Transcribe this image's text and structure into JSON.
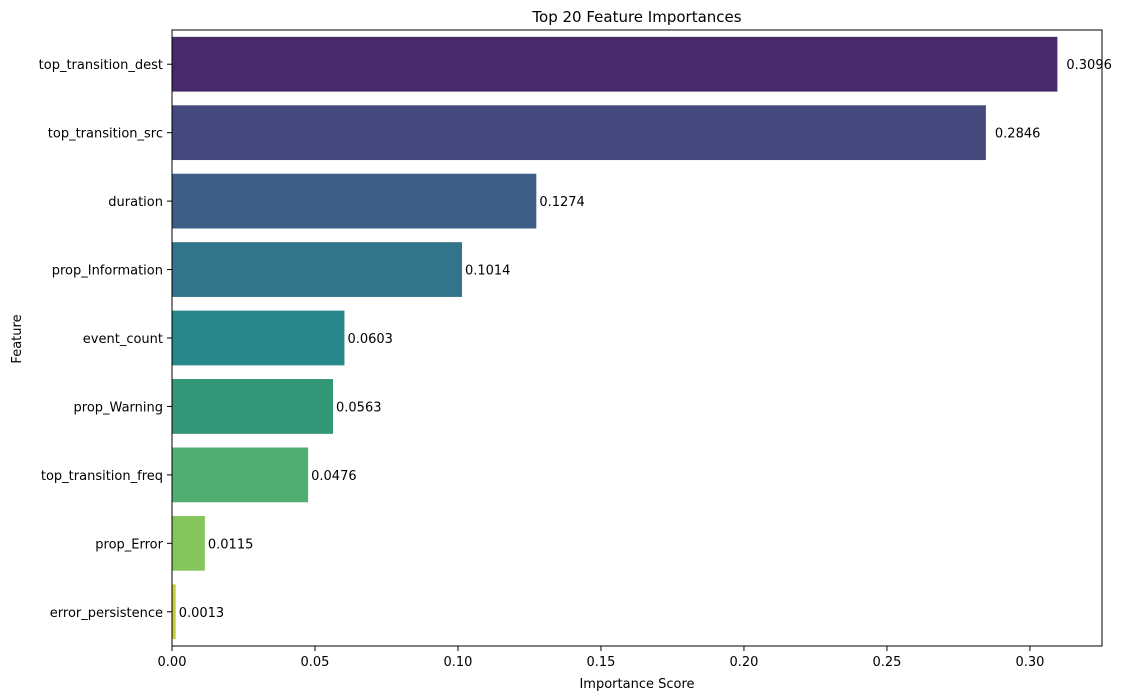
{
  "chart_data": {
    "type": "bar",
    "orientation": "horizontal",
    "title": "Top 20 Feature Importances",
    "xlabel": "Importance Score",
    "ylabel": "Feature",
    "xlim": [
      0,
      0.3252
    ],
    "xticks": [
      0.0,
      0.05,
      0.1,
      0.15,
      0.2,
      0.25,
      0.3
    ],
    "xtick_labels": [
      "0.00",
      "0.05",
      "0.10",
      "0.15",
      "0.20",
      "0.25",
      "0.30"
    ],
    "grid": false,
    "categories": [
      "top_transition_dest",
      "top_transition_src",
      "duration",
      "prop_Information",
      "event_count",
      "prop_Warning",
      "top_transition_freq",
      "prop_Error",
      "error_persistence"
    ],
    "values": [
      0.3096,
      0.2846,
      0.1274,
      0.1014,
      0.0603,
      0.0563,
      0.0476,
      0.0115,
      0.0013
    ],
    "data_labels": [
      "0.3096",
      "0.2846",
      "0.1274",
      "0.1014",
      "0.0603",
      "0.0563",
      "0.0476",
      "0.0115",
      "0.0013"
    ],
    "colors": [
      "#482a6a",
      "#46497e",
      "#3d5f87",
      "#32748a",
      "#27878a",
      "#339677",
      "#50ae73",
      "#84c55d",
      "#c2cf3b"
    ]
  }
}
